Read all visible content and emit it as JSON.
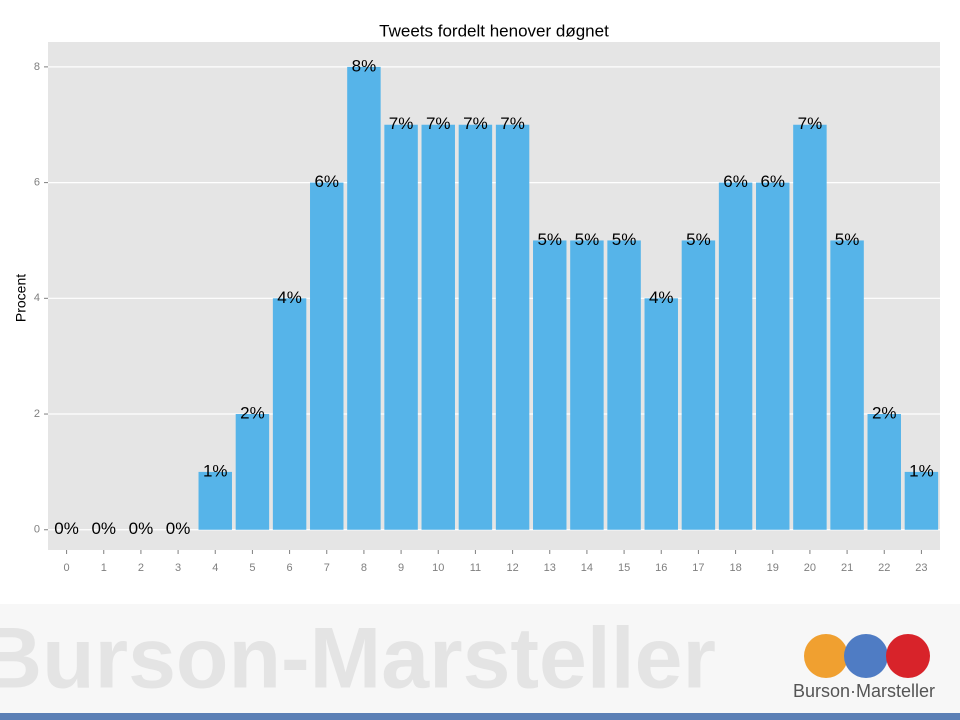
{
  "chart_data": {
    "type": "bar",
    "title": "Tweets fordelt henover døgnet",
    "y_label": "Procent",
    "categories": [
      "0",
      "1",
      "2",
      "3",
      "4",
      "5",
      "6",
      "7",
      "8",
      "9",
      "10",
      "11",
      "12",
      "13",
      "14",
      "15",
      "16",
      "17",
      "18",
      "19",
      "20",
      "21",
      "22",
      "23"
    ],
    "values": [
      0,
      0,
      0,
      0,
      1,
      2,
      4,
      6,
      8,
      7,
      7,
      7,
      7,
      5,
      5,
      5,
      4,
      5,
      6,
      6,
      7,
      5,
      2,
      1
    ],
    "value_labels": [
      "0%",
      "0%",
      "0%",
      "0%",
      "1%",
      "2%",
      "4%",
      "6%",
      "8%",
      "7%",
      "7%",
      "7%",
      "7%",
      "5%",
      "5%",
      "5%",
      "4%",
      "5%",
      "6%",
      "6%",
      "7%",
      "5%",
      "2%",
      "1%"
    ],
    "color": "#56b4e9",
    "ylim": [
      -0.35,
      8.43
    ],
    "yticks": [
      0,
      2,
      4,
      6,
      8
    ],
    "grid": true
  },
  "branding": {
    "watermark": "Burson-Marsteller",
    "logo": "Burson·Marsteller"
  }
}
